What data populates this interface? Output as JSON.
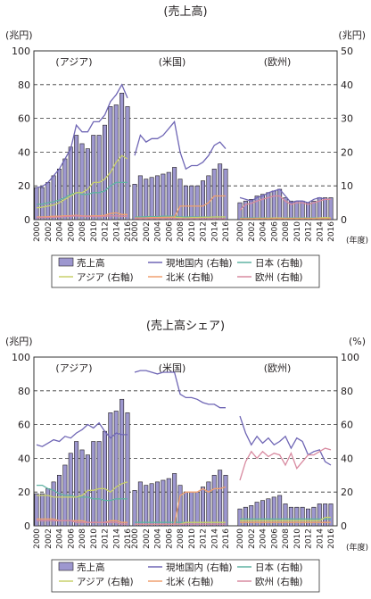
{
  "years": [
    "2000",
    "2001",
    "2002",
    "2003",
    "2004",
    "2005",
    "2006",
    "2007",
    "2008",
    "2009",
    "2010",
    "2011",
    "2012",
    "2013",
    "2014",
    "2015",
    "2016"
  ],
  "year_tick_labels": [
    "2000",
    "2002",
    "2004",
    "2006",
    "2008",
    "2010",
    "2012",
    "2014",
    "2016"
  ],
  "fiscal_year_unit": "(年度)",
  "region_labels": [
    "(アジア)",
    "(米国)",
    "(欧州)"
  ],
  "legend_items": [
    {
      "label": "売上高",
      "color": "#9d97cf",
      "kind": "bar"
    },
    {
      "label": "現地国内 (右軸)",
      "color": "#6f66b5",
      "kind": "line"
    },
    {
      "label": "日本 (右軸)",
      "color": "#5fb3a3",
      "kind": "line"
    },
    {
      "label": "アジア (右軸)",
      "color": "#c9d16a",
      "kind": "line"
    },
    {
      "label": "北米 (右軸)",
      "color": "#f0a070",
      "kind": "line"
    },
    {
      "label": "欧州 (右軸)",
      "color": "#d88aa0",
      "kind": "line"
    }
  ],
  "chart_data": [
    {
      "type": "bar",
      "title": "(売上高)",
      "left_unit": "(兆円)",
      "right_unit": "(兆円)",
      "ylim_left": [
        0,
        100
      ],
      "ylim_right": [
        0,
        50
      ],
      "left_ticks": [
        "0",
        "20",
        "40",
        "60",
        "80",
        "100"
      ],
      "right_ticks": [
        "0",
        "10",
        "20",
        "30",
        "40",
        "50"
      ],
      "grid": true,
      "panels": [
        {
          "region": "アジア",
          "bars": [
            19,
            19,
            22,
            26,
            30,
            36,
            43,
            50,
            45,
            42,
            50,
            50,
            56,
            67,
            68,
            75,
            67
          ],
          "series": [
            {
              "name": "現地国内",
              "values": [
                9.5,
                9.8,
                11,
                13,
                15,
                18,
                21,
                28,
                26,
                26,
                29,
                29,
                31,
                35,
                37,
                40,
                36
              ]
            },
            {
              "name": "日本",
              "values": [
                4.5,
                4.6,
                5,
                5.3,
                5.8,
                6.5,
                7.5,
                8,
                7.5,
                7.5,
                8,
                8,
                8.5,
                10,
                11,
                11,
                11
              ]
            },
            {
              "name": "アジア",
              "values": [
                3.5,
                3.7,
                4,
                4.3,
                5,
                6,
                7,
                8,
                8,
                9,
                11,
                11,
                12,
                14,
                17,
                19,
                18
              ]
            },
            {
              "name": "北米",
              "values": [
                0.8,
                0.8,
                0.9,
                1,
                1,
                1.1,
                1.2,
                1.3,
                1.1,
                1,
                1.1,
                1.1,
                1.3,
                1.8,
                2,
                1.5,
                1.5
              ]
            },
            {
              "name": "欧州",
              "values": [
                0.6,
                0.6,
                0.7,
                0.7,
                0.8,
                0.9,
                1,
                1.1,
                1,
                0.9,
                0.9,
                0.9,
                1,
                1.1,
                1.1,
                1,
                1
              ]
            }
          ]
        },
        {
          "region": "米国",
          "bars": [
            21,
            26,
            24,
            25,
            26,
            27,
            28,
            31,
            24,
            20,
            20,
            20,
            23,
            26,
            30,
            33,
            30
          ],
          "series": [
            {
              "name": "現地国内",
              "values": [
                19,
                25,
                23,
                24,
                24,
                25,
                27,
                29,
                20,
                15,
                16,
                16,
                17,
                19,
                22,
                23,
                21
              ]
            },
            {
              "name": "日本",
              "values": [
                0.8,
                0.8,
                0.9,
                0.9,
                0.9,
                1,
                1,
                1,
                0.8,
                0.8,
                0.8,
                0.8,
                0.8,
                0.8,
                0.8,
                0.8,
                0.8
              ]
            },
            {
              "name": "アジア",
              "values": [
                0.5,
                0.5,
                0.5,
                0.6,
                0.6,
                0.6,
                0.7,
                0.7,
                0.6,
                0.5,
                0.6,
                0.6,
                0.7,
                0.7,
                0.8,
                0.8,
                0.8
              ]
            },
            {
              "name": "北米",
              "values": [
                0.5,
                0.5,
                0.5,
                0.6,
                0.6,
                0.7,
                0.7,
                0.8,
                4,
                4,
                4,
                4,
                4,
                5,
                7,
                7,
                7
              ]
            },
            {
              "name": "欧州",
              "values": [
                0.3,
                0.3,
                0.3,
                0.3,
                0.3,
                0.3,
                0.3,
                0.3,
                0.3,
                0.3,
                0.3,
                0.3,
                0.3,
                0.3,
                0.3,
                0.3,
                0.3
              ]
            }
          ]
        },
        {
          "region": "欧州",
          "bars": [
            10,
            11,
            12,
            14,
            15,
            16,
            17,
            18,
            13,
            11,
            11,
            11,
            10,
            11,
            13,
            13,
            13
          ],
          "series": [
            {
              "name": "現地国内",
              "values": [
                6.5,
                6,
                5.5,
                6.5,
                7,
                8,
                8.5,
                9,
                7,
                5,
                5.5,
                5.5,
                5,
                6,
                6.5,
                6,
                6
              ]
            },
            {
              "name": "日本",
              "values": [
                0.5,
                0.5,
                0.5,
                0.5,
                0.5,
                0.5,
                0.5,
                0.5,
                0.5,
                0.5,
                0.5,
                0.5,
                0.5,
                0.5,
                0.5,
                0.5,
                0.5
              ]
            },
            {
              "name": "アジア",
              "values": [
                0.3,
                0.3,
                0.3,
                0.4,
                0.4,
                0.4,
                0.5,
                0.5,
                0.4,
                0.4,
                0.4,
                0.4,
                0.4,
                0.4,
                0.5,
                0.6,
                0.5
              ]
            },
            {
              "name": "北米",
              "values": [
                0.3,
                0.3,
                0.3,
                0.3,
                0.3,
                0.3,
                0.3,
                0.3,
                0.3,
                0.3,
                0.3,
                0.3,
                0.3,
                0.3,
                0.3,
                0.3,
                0.3
              ]
            },
            {
              "name": "欧州",
              "values": [
                2.8,
                4.5,
                4.8,
                5.5,
                6,
                6.5,
                7,
                7,
                5.5,
                4.5,
                5,
                5,
                4.5,
                5,
                5.5,
                6,
                6
              ]
            }
          ]
        }
      ]
    },
    {
      "type": "bar",
      "title": "(売上高シェア)",
      "left_unit": "(兆円)",
      "right_unit": "(%)",
      "ylim_left": [
        0,
        100
      ],
      "ylim_right": [
        0,
        100
      ],
      "left_ticks": [
        "0",
        "20",
        "40",
        "60",
        "80",
        "100"
      ],
      "right_ticks": [
        "0",
        "20",
        "40",
        "60",
        "80",
        "100"
      ],
      "grid": true,
      "panels": [
        {
          "region": "アジア",
          "bars": [
            19,
            19,
            22,
            26,
            30,
            36,
            43,
            50,
            45,
            42,
            50,
            50,
            56,
            67,
            68,
            75,
            67
          ],
          "series": [
            {
              "name": "現地国内",
              "values": [
                48,
                47,
                49,
                51,
                50,
                53,
                52,
                55,
                57,
                60,
                58,
                61,
                56,
                52,
                55,
                54,
                54
              ]
            },
            {
              "name": "日本",
              "values": [
                24,
                24,
                22,
                21,
                19,
                18,
                18,
                17,
                17,
                17,
                16,
                16,
                15,
                15,
                16,
                16,
                16
              ]
            },
            {
              "name": "アジア",
              "values": [
                18,
                18,
                18,
                17,
                17,
                17,
                17,
                17,
                18,
                21,
                21,
                22,
                22,
                20,
                23,
                25,
                26
              ]
            },
            {
              "name": "北米",
              "values": [
                4,
                4,
                4,
                4,
                3,
                3,
                3,
                3,
                3,
                2,
                2,
                2,
                2,
                3,
                3,
                2,
                2
              ]
            },
            {
              "name": "欧州",
              "values": [
                3,
                3,
                3,
                3,
                3,
                3,
                3,
                2,
                2,
                2,
                2,
                2,
                2,
                2,
                2,
                1,
                1
              ]
            }
          ]
        },
        {
          "region": "米国",
          "bars": [
            21,
            26,
            24,
            25,
            26,
            27,
            28,
            31,
            24,
            20,
            20,
            20,
            23,
            26,
            30,
            33,
            30
          ],
          "series": [
            {
              "name": "現地国内",
              "values": [
                91,
                92,
                92,
                91,
                90,
                91,
                91,
                91,
                78,
                76,
                76,
                75,
                73,
                72,
                72,
                70,
                70
              ]
            },
            {
              "name": "日本",
              "values": [
                2,
                2,
                2,
                2,
                2,
                2,
                2,
                2,
                2,
                2,
                2,
                2,
                2,
                2,
                2,
                2,
                2
              ]
            },
            {
              "name": "アジア",
              "values": [
                1,
                1,
                1,
                1,
                1,
                1,
                1,
                1,
                1,
                2,
                2,
                2,
                2,
                2,
                2,
                2,
                2
              ]
            },
            {
              "name": "北米",
              "values": [
                1,
                1,
                1,
                1,
                1,
                1,
                1,
                1,
                18,
                20,
                20,
                20,
                22,
                20,
                22,
                22,
                23
              ]
            },
            {
              "name": "欧州",
              "values": [
                1,
                1,
                1,
                1,
                1,
                1,
                1,
                1,
                1,
                1,
                1,
                1,
                1,
                1,
                1,
                1,
                1
              ]
            }
          ]
        },
        {
          "region": "欧州",
          "bars": [
            10,
            11,
            12,
            14,
            15,
            16,
            17,
            18,
            13,
            11,
            11,
            11,
            10,
            11,
            13,
            13,
            13
          ],
          "series": [
            {
              "name": "現地国内",
              "values": [
                65,
                55,
                48,
                53,
                49,
                52,
                48,
                50,
                53,
                46,
                52,
                50,
                42,
                44,
                45,
                38,
                36
              ]
            },
            {
              "name": "日本",
              "values": [
                4,
                4,
                4,
                4,
                4,
                4,
                4,
                4,
                4,
                4,
                4,
                4,
                4,
                4,
                4,
                4,
                4
              ]
            },
            {
              "name": "アジア",
              "values": [
                3,
                3,
                3,
                3,
                3,
                3,
                3,
                3,
                3,
                3,
                3,
                3,
                3,
                3,
                3,
                5,
                5
              ]
            },
            {
              "name": "北米",
              "values": [
                2,
                2,
                2,
                2,
                2,
                2,
                2,
                2,
                2,
                2,
                2,
                2,
                2,
                2,
                2,
                2,
                2
              ]
            },
            {
              "name": "欧州",
              "values": [
                27,
                38,
                44,
                40,
                44,
                41,
                43,
                42,
                36,
                43,
                34,
                38,
                42,
                42,
                44,
                46,
                45
              ]
            }
          ]
        }
      ]
    }
  ]
}
